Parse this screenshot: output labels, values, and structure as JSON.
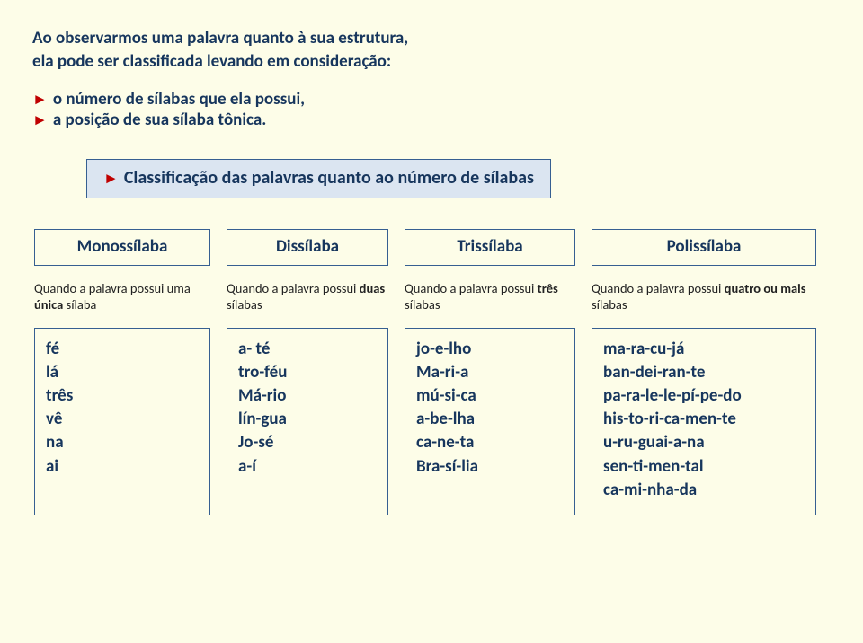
{
  "intro_l1": "Ao observarmos uma palavra quanto à sua estrutura,",
  "intro_l2": "ela pode ser classificada levando em consideração:",
  "bullet1": "o número de sílabas que ela possui,",
  "bullet2": "a posição de sua sílaba tônica.",
  "section_title": "Classificação das palavras quanto ao número de sílabas",
  "cols": {
    "c1": {
      "title": "Monossílaba",
      "desc_a": "Quando a palavra possui uma ",
      "desc_b": "única",
      "desc_c": " sílaba",
      "ex": [
        "fé",
        "lá",
        "três",
        "vê",
        "na",
        "ai"
      ]
    },
    "c2": {
      "title": "Dissílaba",
      "desc_a": "Quando a palavra possui ",
      "desc_b": "duas",
      "desc_c": " sílabas",
      "ex": [
        "a- té",
        "tro-féu",
        "Má-rio",
        "lín-gua",
        "Jo-sé",
        "a-í"
      ]
    },
    "c3": {
      "title": "Trissílaba",
      "desc_a": "Quando a palavra possui  ",
      "desc_b": "três",
      "desc_c": " sílabas",
      "ex": [
        "jo-e-lho",
        "Ma-ri-a",
        "mú-si-ca",
        "a-be-lha",
        "ca-ne-ta",
        "Bra-sí-lia"
      ]
    },
    "c4": {
      "title": "Polissílaba",
      "desc_a": "Quando a palavra possui ",
      "desc_b": "quatro ou mais",
      "desc_c": " sílabas",
      "ex": [
        "ma-ra-cu-já",
        "ban-dei-ran-te",
        "pa-ra-le-le-pí-pe-do",
        "his-to-ri-ca-men-te",
        "u-ru-guai-a-na",
        "sen-ti-men-tal",
        "ca-mi-nha-da"
      ]
    }
  },
  "triangle": "►"
}
